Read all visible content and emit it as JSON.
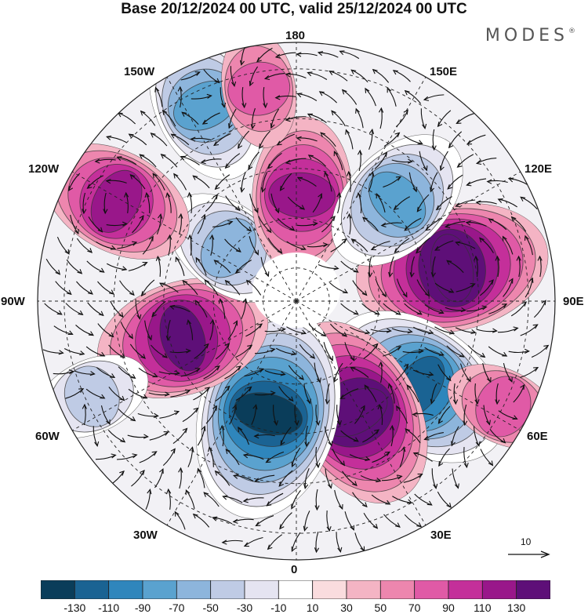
{
  "title": "Base 20/12/2024 00 UTC, valid 25/12/2024 00 UTC",
  "logo": "MODES",
  "logo_mark": "®",
  "projection": "north-polar-stereographic",
  "longitude_labels": {
    "deg_180": "180",
    "deg_150E": "150E",
    "deg_120E": "120E",
    "deg_90E": "90E",
    "deg_60E": "60E",
    "deg_30E": "30E",
    "deg_0": "0",
    "deg_30W": "30W",
    "deg_60W": "60W",
    "deg_90W": "90W",
    "deg_120W": "120W",
    "deg_150W": "150W"
  },
  "vector_reference": {
    "value": 10,
    "label": "10"
  },
  "colorbar": {
    "colors": [
      "#0a3d5a",
      "#1a6393",
      "#2f86bc",
      "#5aa2cf",
      "#8db5dc",
      "#bfcbe5",
      "#e5e4f1",
      "#ffffff",
      "#fadcde",
      "#f4b4c4",
      "#ed86ae",
      "#e05aa6",
      "#c42f9a",
      "#99178a",
      "#5e0f78"
    ],
    "ticks": [
      "-130",
      "-110",
      "-90",
      "-70",
      "-50",
      "-30",
      "-10",
      "10",
      "30",
      "50",
      "70",
      "90",
      "110",
      "130"
    ]
  },
  "anomaly_centers": [
    {
      "sign": "positive",
      "level": 110,
      "lon_deg": 102,
      "colat_deg": 48
    },
    {
      "sign": "negative",
      "level": -110,
      "lon_deg": 55,
      "colat_deg": 45
    },
    {
      "sign": "positive",
      "level": 110,
      "lon_deg": 28,
      "colat_deg": 38
    },
    {
      "sign": "negative",
      "level": -130,
      "lon_deg": -14,
      "colat_deg": 35
    },
    {
      "sign": "positive",
      "level": 90,
      "lon_deg": -72,
      "colat_deg": 36
    },
    {
      "sign": "negative",
      "level": -50,
      "lon_deg": -128,
      "colat_deg": 26
    },
    {
      "sign": "positive",
      "level": 70,
      "lon_deg": -119,
      "colat_deg": 62
    },
    {
      "sign": "negative",
      "level": -70,
      "lon_deg": -155,
      "colat_deg": 65
    },
    {
      "sign": "positive",
      "level": 70,
      "lon_deg": 177,
      "colat_deg": 32
    },
    {
      "sign": "negative",
      "level": -70,
      "lon_deg": 135,
      "colat_deg": 43
    },
    {
      "sign": "positive",
      "level": 30,
      "lon_deg": -170,
      "colat_deg": 65
    },
    {
      "sign": "positive",
      "level": 30,
      "lon_deg": 63,
      "colat_deg": 70
    },
    {
      "sign": "negative",
      "level": -30,
      "lon_deg": -65,
      "colat_deg": 68
    }
  ]
}
